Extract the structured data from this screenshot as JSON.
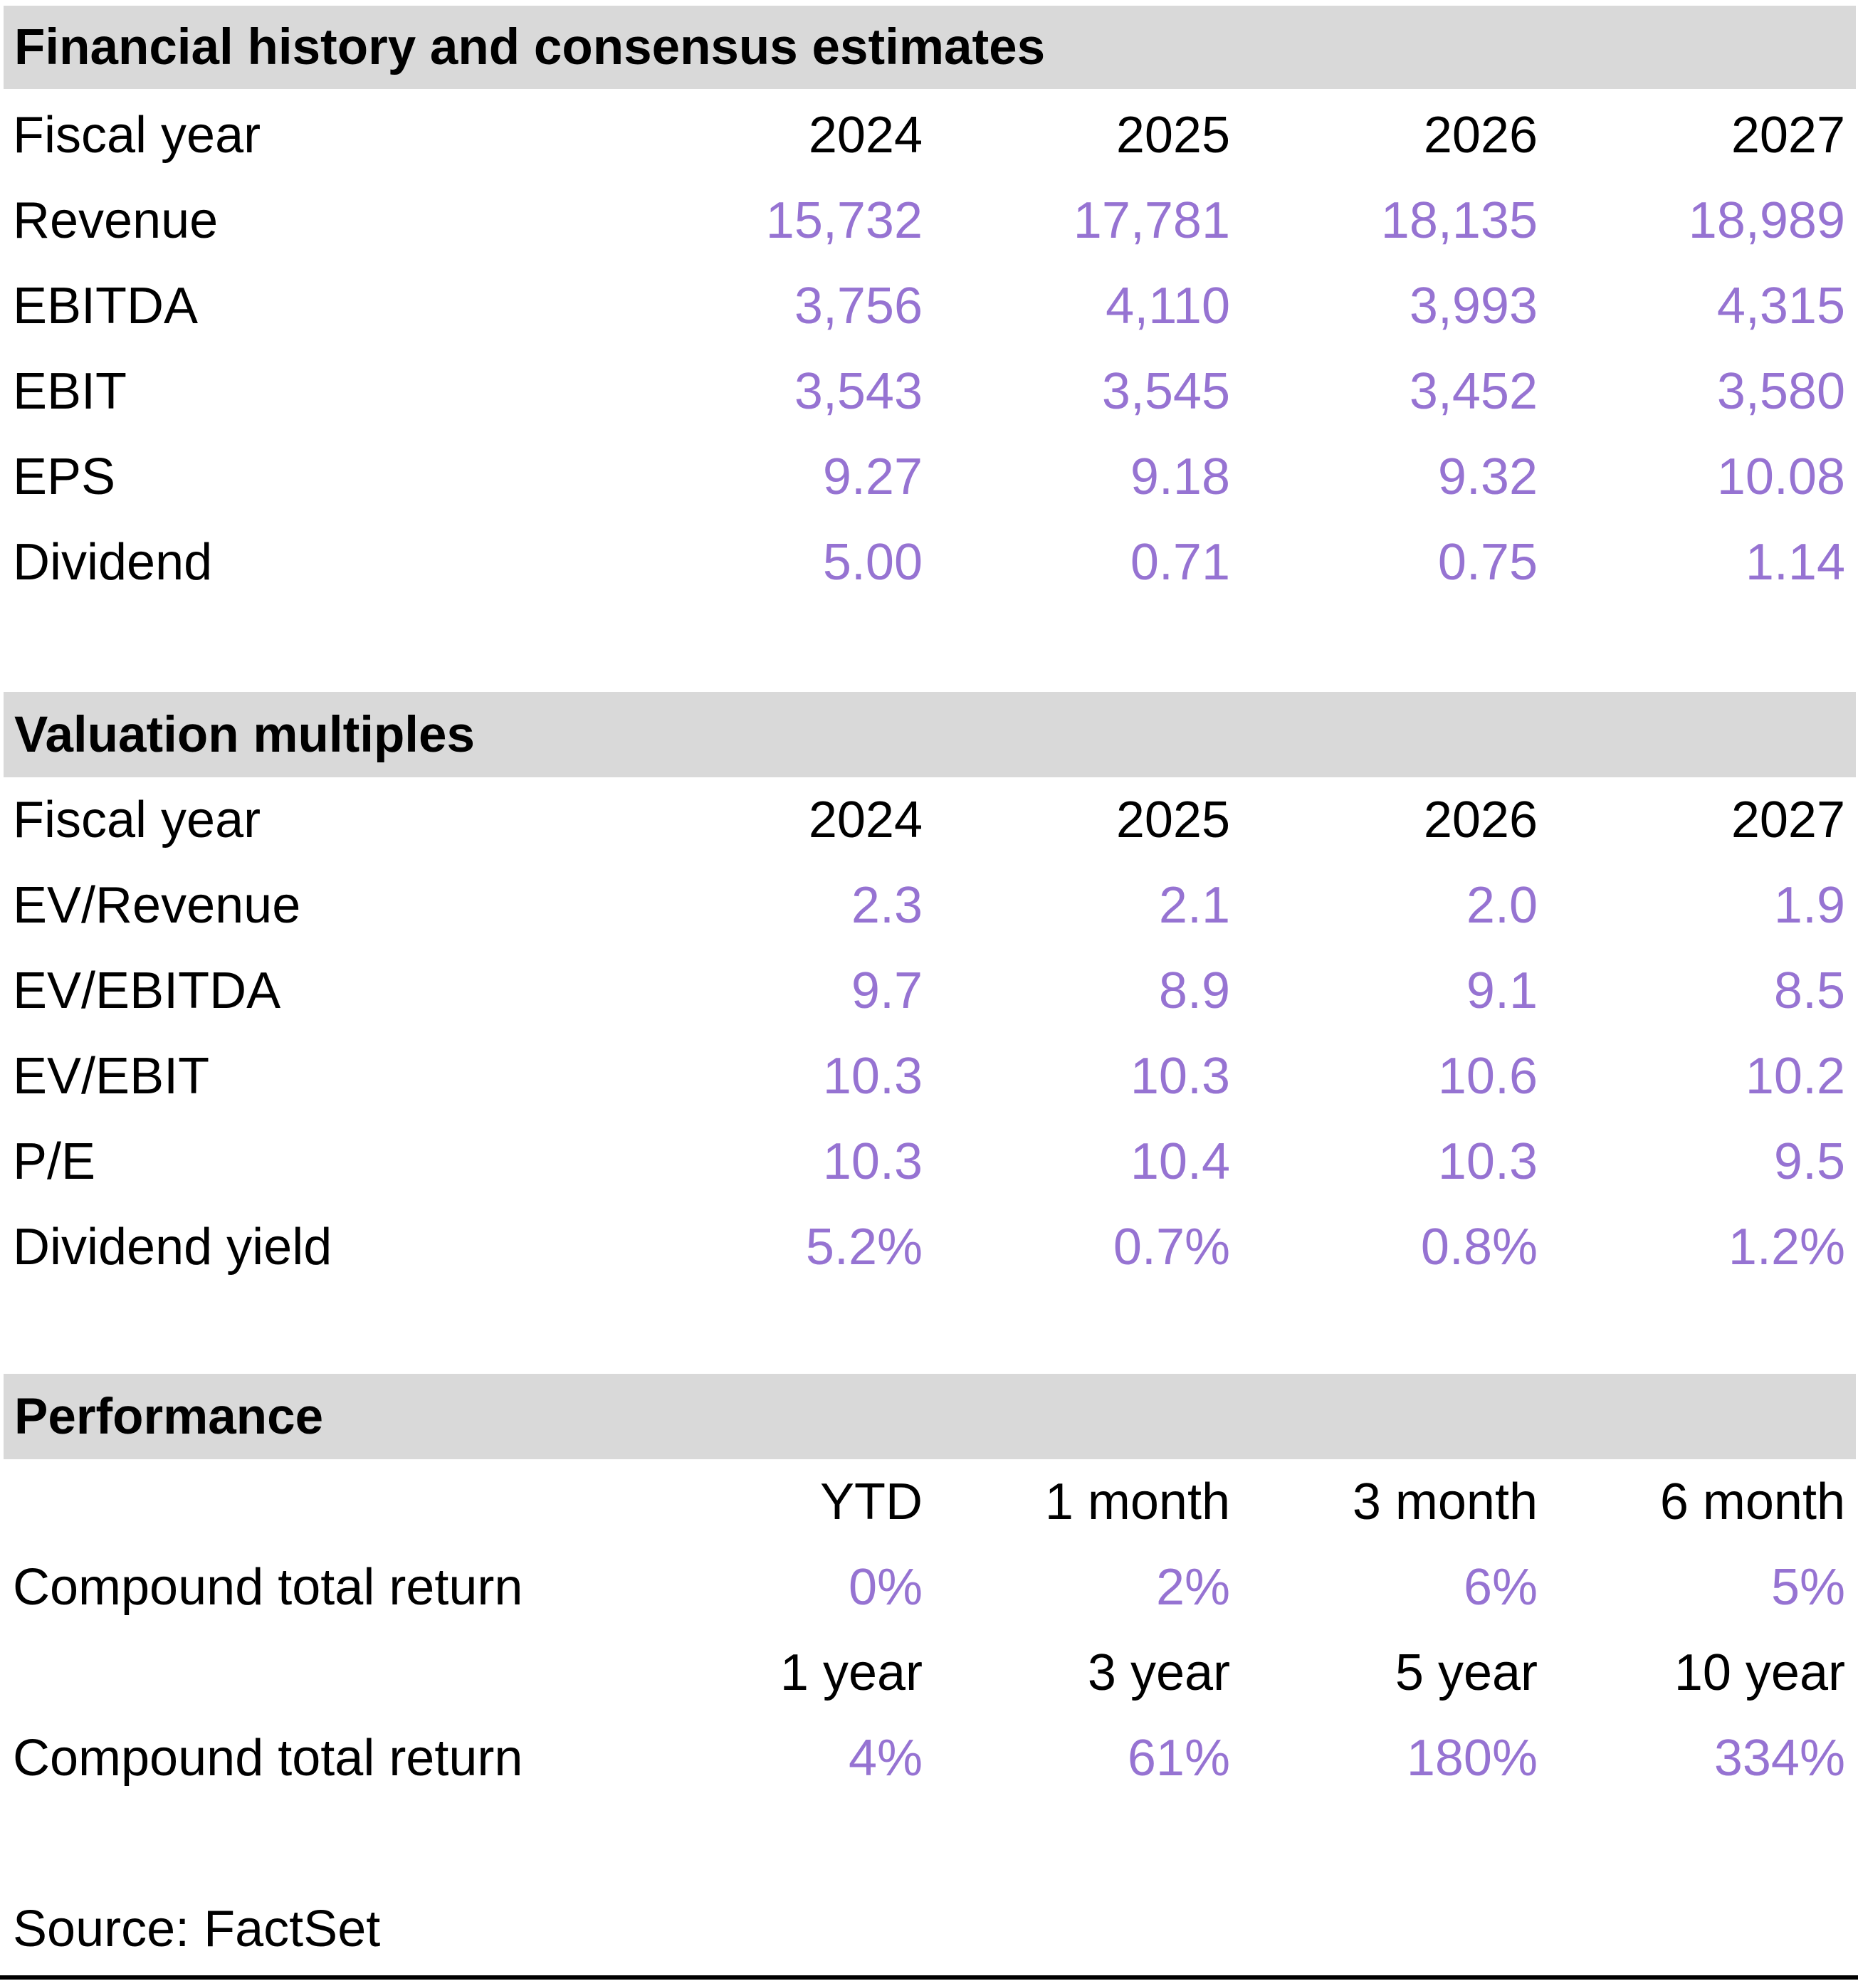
{
  "colors": {
    "value_purple": "#9673d2",
    "section_header_bg": "#d9d9d9",
    "text_black": "#000000"
  },
  "sections": [
    {
      "title": "Financial history and consensus estimates",
      "header_row": {
        "label": "Fiscal year",
        "cols": [
          "2024",
          "2025",
          "2026",
          "2027"
        ]
      },
      "rows": [
        {
          "label": "Revenue",
          "values": [
            "15,732",
            "17,781",
            "18,135",
            "18,989"
          ]
        },
        {
          "label": "EBITDA",
          "values": [
            "3,756",
            "4,110",
            "3,993",
            "4,315"
          ]
        },
        {
          "label": "EBIT",
          "values": [
            "3,543",
            "3,545",
            "3,452",
            "3,580"
          ]
        },
        {
          "label": "EPS",
          "values": [
            "9.27",
            "9.18",
            "9.32",
            "10.08"
          ]
        },
        {
          "label": "Dividend",
          "values": [
            "5.00",
            "0.71",
            "0.75",
            "1.14"
          ]
        }
      ]
    },
    {
      "title": "Valuation multiples",
      "header_row": {
        "label": "Fiscal year",
        "cols": [
          "2024",
          "2025",
          "2026",
          "2027"
        ]
      },
      "rows": [
        {
          "label": "EV/Revenue",
          "values": [
            "2.3",
            "2.1",
            "2.0",
            "1.9"
          ]
        },
        {
          "label": "EV/EBITDA",
          "values": [
            "9.7",
            "8.9",
            "9.1",
            "8.5"
          ]
        },
        {
          "label": "EV/EBIT",
          "values": [
            "10.3",
            "10.3",
            "10.6",
            "10.2"
          ]
        },
        {
          "label": "P/E",
          "values": [
            "10.3",
            "10.4",
            "10.3",
            "9.5"
          ]
        },
        {
          "label": "Dividend yield",
          "values": [
            "5.2%",
            "0.7%",
            "0.8%",
            "1.2%"
          ]
        }
      ]
    },
    {
      "title": "Performance",
      "blocks": [
        {
          "header_cols": [
            "YTD",
            "1 month",
            "3 month",
            "6 month"
          ],
          "row": {
            "label": "Compound total return",
            "values": [
              "0%",
              "2%",
              "6%",
              "5%"
            ]
          }
        },
        {
          "header_cols": [
            "1 year",
            "3 year",
            "5 year",
            "10 year"
          ],
          "row": {
            "label": "Compound total return",
            "values": [
              "4%",
              "61%",
              "180%",
              "334%"
            ]
          }
        }
      ]
    }
  ],
  "source": "Source: FactSet"
}
